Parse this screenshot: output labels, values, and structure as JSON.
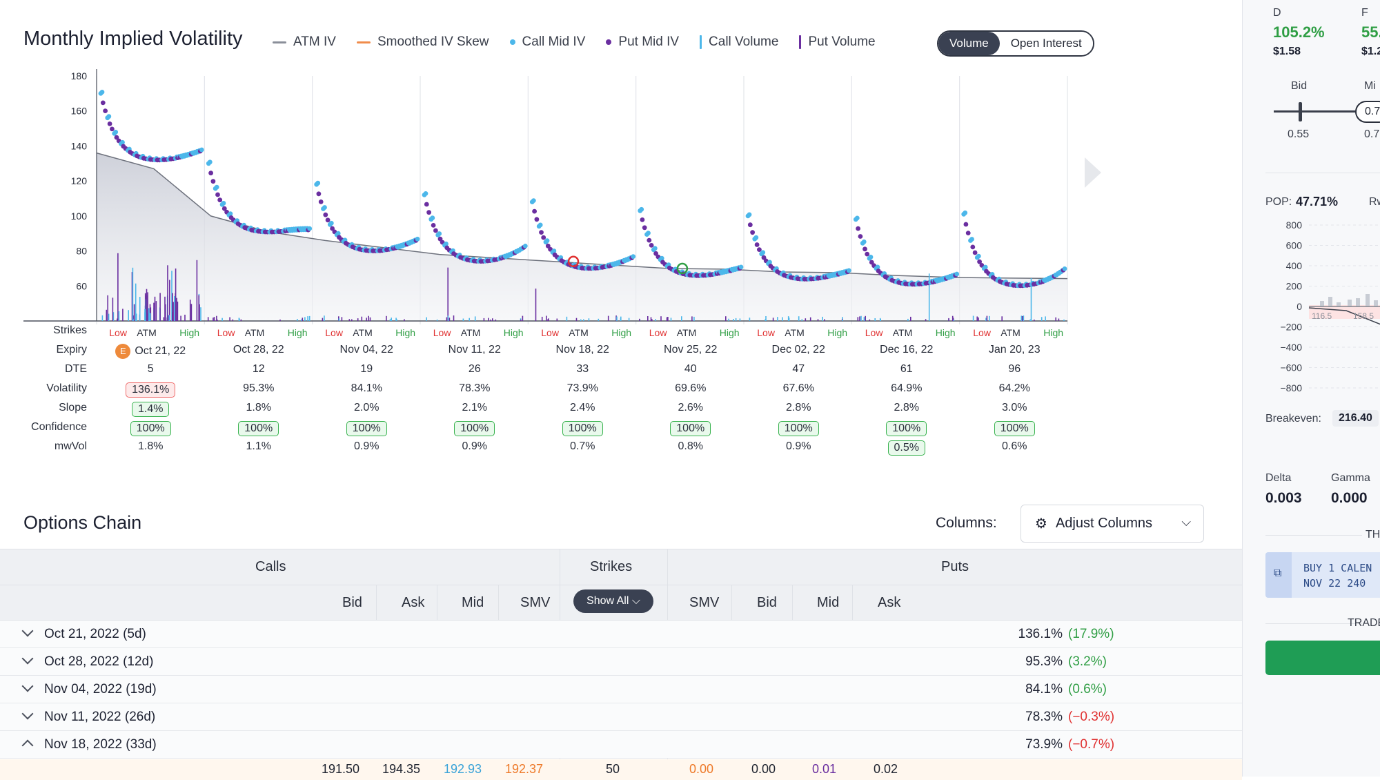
{
  "header": {
    "title": "Monthly Implied Volatility",
    "legend": [
      {
        "label": "ATM IV",
        "color": "#8a8f99",
        "kind": "line"
      },
      {
        "label": "Smoothed IV Skew",
        "color": "#f08c4b",
        "kind": "line"
      },
      {
        "label": "Call Mid IV",
        "color": "#4cb7ea",
        "kind": "dot"
      },
      {
        "label": "Put Mid IV",
        "color": "#6a2ea0",
        "kind": "dot"
      },
      {
        "label": "Call Volume",
        "color": "#4cb7ea",
        "kind": "bar"
      },
      {
        "label": "Put Volume",
        "color": "#6a2ea0",
        "kind": "bar"
      }
    ],
    "toggle": {
      "volume": "Volume",
      "open_interest": "Open Interest"
    }
  },
  "chart_data": {
    "type": "scatter",
    "y_ticks": [
      "180",
      "160",
      "140",
      "120",
      "100",
      "80",
      "60"
    ],
    "ylim": [
      40,
      180
    ],
    "grid": true,
    "atm_iv_line": [
      136,
      127,
      100,
      91,
      86,
      82,
      78,
      76,
      74,
      72,
      70,
      69.6,
      68,
      67.6,
      66,
      64.9,
      64.5,
      64.2
    ],
    "expiries": [
      {
        "date": "Oct 21, 22",
        "dte": "5",
        "volatility": "136.1%",
        "slope": "1.4%",
        "confidence": "100%",
        "mwvol": "1.8%",
        "earnings": "E",
        "iv_start": 170,
        "iv_atm": 136,
        "iv_end": 137
      },
      {
        "date": "Oct 28, 22",
        "dte": "12",
        "volatility": "95.3%",
        "slope": "1.8%",
        "confidence": "100%",
        "mwvol": "1.1%",
        "iv_start": 130,
        "iv_atm": 95,
        "iv_end": 92
      },
      {
        "date": "Nov 04, 22",
        "dte": "19",
        "volatility": "84.1%",
        "slope": "2.0%",
        "confidence": "100%",
        "mwvol": "0.9%",
        "iv_start": 118,
        "iv_atm": 84,
        "iv_end": 86
      },
      {
        "date": "Nov 11, 22",
        "dte": "26",
        "volatility": "78.3%",
        "slope": "2.1%",
        "confidence": "100%",
        "mwvol": "0.9%",
        "iv_start": 112,
        "iv_atm": 78,
        "iv_end": 82
      },
      {
        "date": "Nov 18, 22",
        "dte": "33",
        "volatility": "73.9%",
        "slope": "2.4%",
        "confidence": "100%",
        "mwvol": "0.7%",
        "iv_start": 108,
        "iv_atm": 74,
        "iv_end": 76
      },
      {
        "date": "Nov 25, 22",
        "dte": "40",
        "volatility": "69.6%",
        "slope": "2.6%",
        "confidence": "100%",
        "mwvol": "0.8%",
        "iv_start": 103,
        "iv_atm": 70,
        "iv_end": 70
      },
      {
        "date": "Dec 02, 22",
        "dte": "47",
        "volatility": "67.6%",
        "slope": "2.8%",
        "confidence": "100%",
        "mwvol": "0.9%",
        "iv_start": 100,
        "iv_atm": 68,
        "iv_end": 68
      },
      {
        "date": "Dec 16, 22",
        "dte": "61",
        "volatility": "64.9%",
        "slope": "2.8%",
        "confidence": "100%",
        "mwvol": "0.5%",
        "iv_start": 98,
        "iv_atm": 65,
        "iv_end": 66
      },
      {
        "date": "Jan 20, 23",
        "dte": "96",
        "volatility": "64.2%",
        "slope": "3.0%",
        "confidence": "100%",
        "mwvol": "0.6%",
        "iv_start": 101,
        "iv_atm": 64,
        "iv_end": 69
      }
    ],
    "strikes_labels": {
      "low": "Low",
      "atm": "ATM",
      "high": "High"
    }
  },
  "grid_rows": {
    "strikes": "Strikes",
    "expiry": "Expiry",
    "dte": "DTE",
    "volatility": "Volatility",
    "slope": "Slope",
    "confidence": "Confidence",
    "mwvol": "mwVol"
  },
  "options_chain": {
    "title": "Options Chain",
    "columns_label": "Columns:",
    "adjust_label": "Adjust Columns",
    "calls": "Calls",
    "strikes": "Strikes",
    "puts": "Puts",
    "show_all": "Show All",
    "call_cols": [
      "Bid",
      "Ask",
      "Mid",
      "SMV"
    ],
    "put_cols": [
      "SMV",
      "Bid",
      "Mid",
      "Ask"
    ],
    "expirations": [
      {
        "label": "Oct 21, 2022 (5d)",
        "iv": "136.1%",
        "chg": "(17.9%)",
        "dir": "pos",
        "open": false
      },
      {
        "label": "Oct 28, 2022 (12d)",
        "iv": "95.3%",
        "chg": "(3.2%)",
        "dir": "pos",
        "open": false
      },
      {
        "label": "Nov 04, 2022 (19d)",
        "iv": "84.1%",
        "chg": "(0.6%)",
        "dir": "pos",
        "open": false
      },
      {
        "label": "Nov 11, 2022 (26d)",
        "iv": "78.3%",
        "chg": "(−0.3%)",
        "dir": "neg",
        "open": false
      },
      {
        "label": "Nov 18, 2022 (33d)",
        "iv": "73.9%",
        "chg": "(−0.7%)",
        "dir": "neg",
        "open": true
      }
    ],
    "first_row": {
      "call_bid": "191.50",
      "call_ask": "194.35",
      "call_mid": "192.93",
      "call_smv": "192.37",
      "strike": "50",
      "put_smv": "0.00",
      "put_bid": "0.00",
      "put_mid": "0.01",
      "put_ask": "0.02"
    }
  },
  "right_panel": {
    "col_d": "D",
    "col_f": "F",
    "d_pct": "105.2%",
    "f_pct": "55.",
    "d_price": "$1.58",
    "f_price": "$1.2",
    "bid_label": "Bid",
    "mid_label": "Mi",
    "bid_value": "0.55",
    "knob_value": "0.7",
    "mid_value": "0.7",
    "pop_label": "POP:",
    "pop_value": "47.71%",
    "rw_label": "Rw",
    "pl_ticks": [
      "800",
      "600",
      "400",
      "200",
      "0",
      "−200",
      "−400",
      "−600",
      "−800"
    ],
    "pl_x_labels": [
      "116.5",
      "158.5"
    ],
    "breakeven_label": "Breakeven:",
    "breakeven_value": "216.40",
    "delta_label": "Delta",
    "delta_value": "0.003",
    "gamma_label": "Gamma",
    "gamma_value": "0.000",
    "th_label": "TH",
    "buy_line1": "BUY 1 CALEN",
    "buy_line2": "NOV 22 240 ",
    "trade_label": "TRADE "
  }
}
